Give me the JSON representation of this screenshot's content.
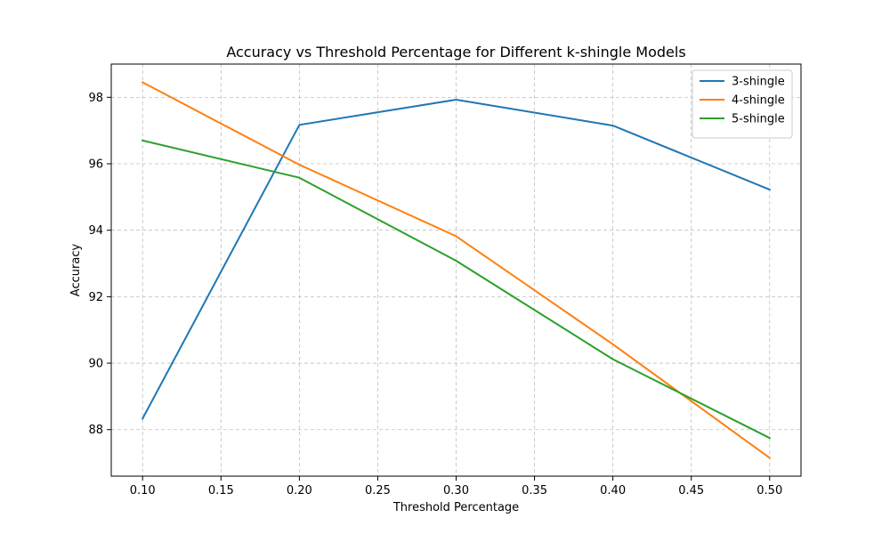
{
  "chart_data": {
    "type": "line",
    "title": "Accuracy vs Threshold Percentage for Different k-shingle Models",
    "xlabel": "Threshold Percentage",
    "ylabel": "Accuracy",
    "x": [
      0.1,
      0.2,
      0.3,
      0.4,
      0.5
    ],
    "xlim": [
      0.08,
      0.52
    ],
    "ylim": [
      86.6,
      99.0
    ],
    "xticks": [
      0.1,
      0.15,
      0.2,
      0.25,
      0.3,
      0.35,
      0.4,
      0.45,
      0.5
    ],
    "xtick_labels": [
      "0.10",
      "0.15",
      "0.20",
      "0.25",
      "0.30",
      "0.35",
      "0.40",
      "0.45",
      "0.50"
    ],
    "yticks": [
      88,
      90,
      92,
      94,
      96,
      98
    ],
    "ytick_labels": [
      "88",
      "90",
      "92",
      "94",
      "96",
      "98"
    ],
    "grid": true,
    "legend_position": "top-right",
    "series": [
      {
        "name": "3-shingle",
        "color": "#1f77b4",
        "values": [
          88.33,
          97.17,
          97.93,
          97.15,
          95.22
        ]
      },
      {
        "name": "4-shingle",
        "color": "#ff7f0e",
        "values": [
          98.45,
          95.97,
          93.82,
          90.57,
          87.15
        ]
      },
      {
        "name": "5-shingle",
        "color": "#2ca02c",
        "values": [
          96.7,
          95.58,
          93.08,
          90.12,
          87.75
        ]
      }
    ]
  }
}
